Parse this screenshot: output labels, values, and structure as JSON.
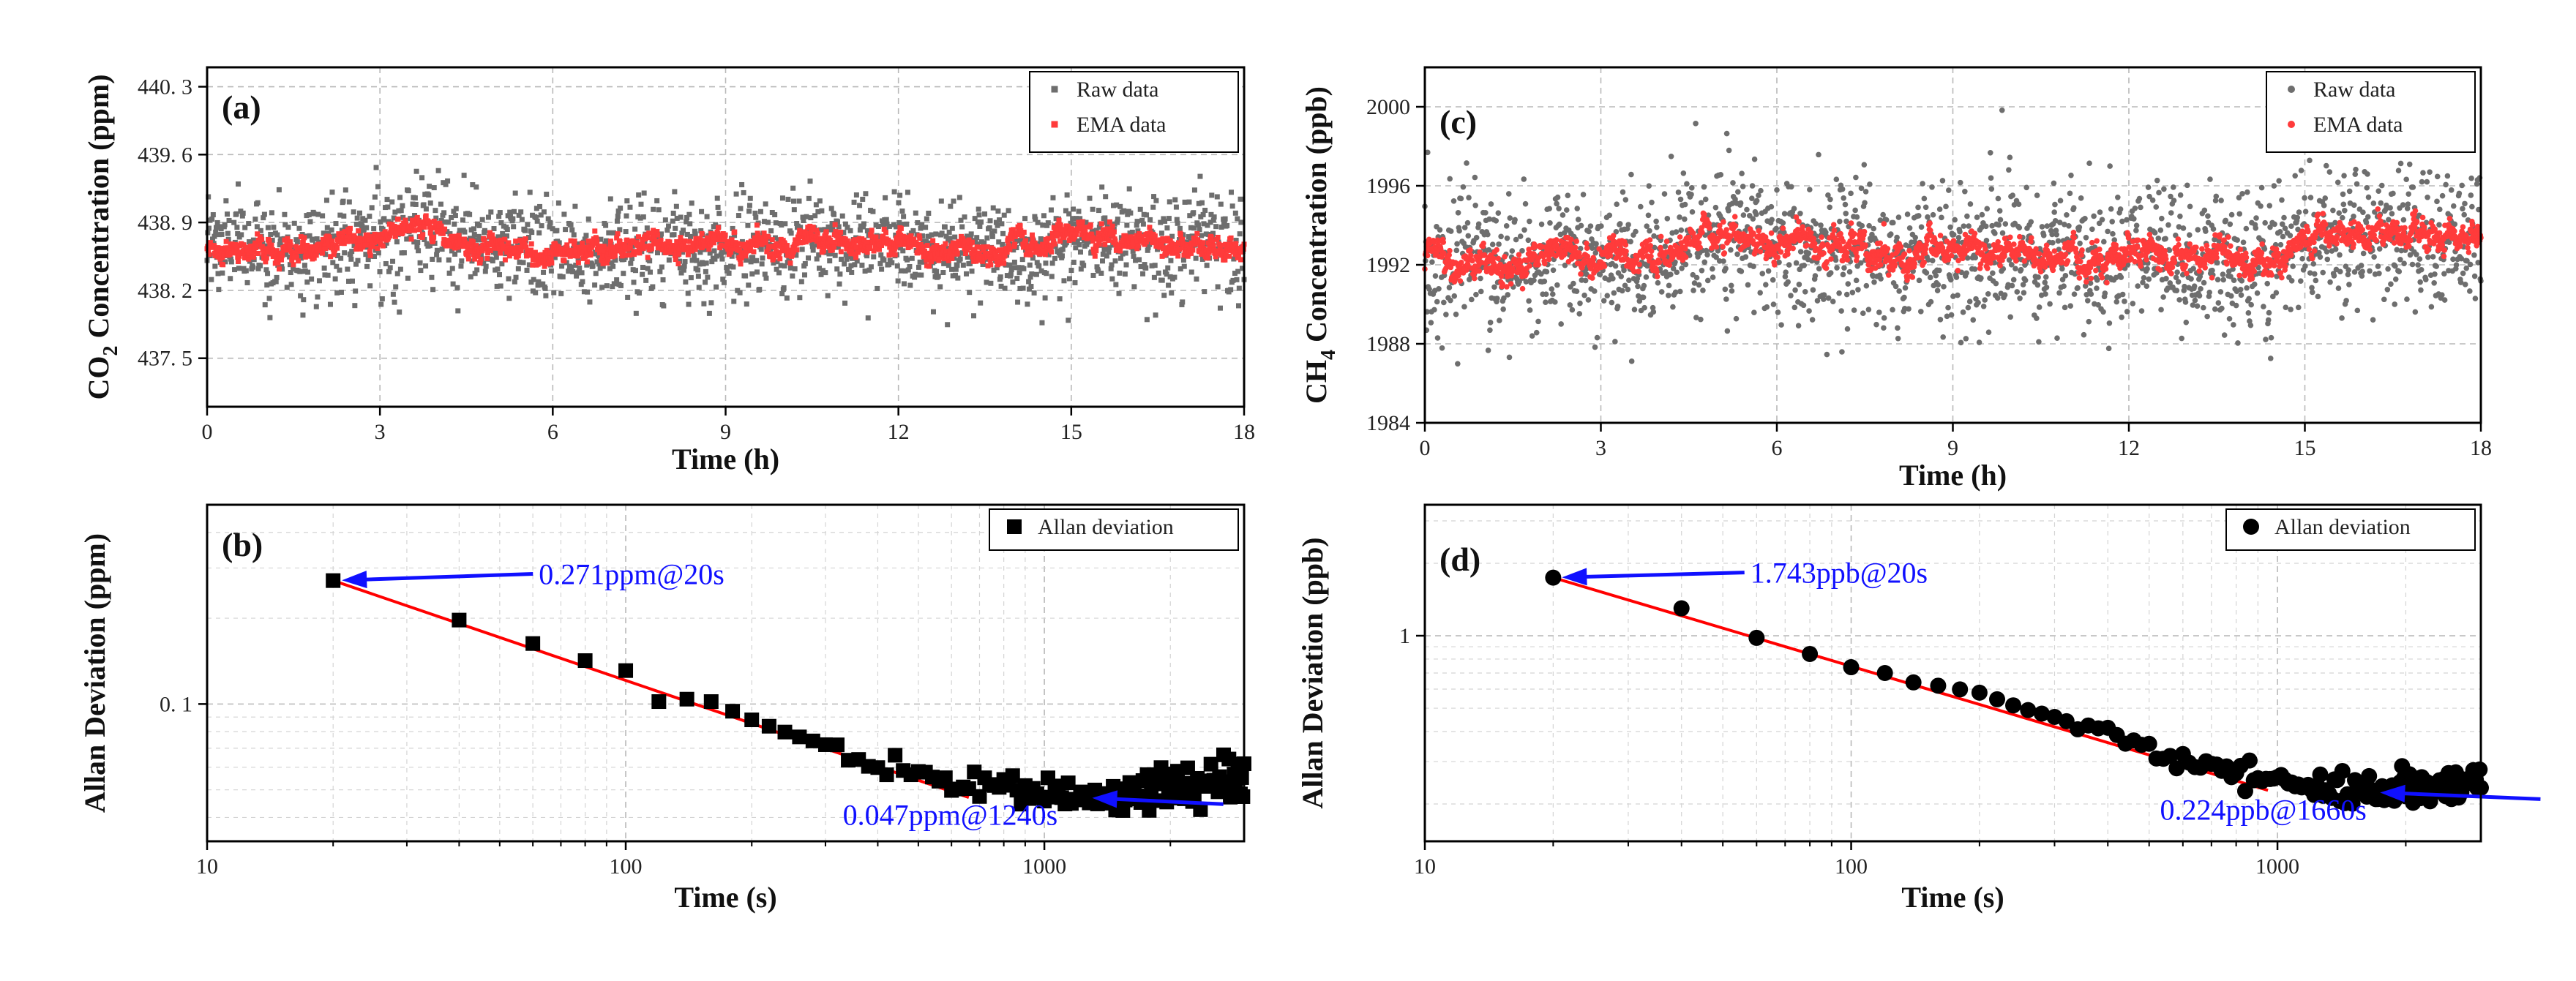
{
  "chart_data": [
    {
      "panel": "(a)",
      "type": "scatter",
      "xlabel": "Time (h)",
      "ylabel_main": "CO",
      "ylabel_sub": "2",
      "ylabel_tail": " Concentration (ppm)",
      "xlim": [
        0,
        18
      ],
      "ylim": [
        437.0,
        440.5
      ],
      "x_ticks": [
        0,
        3,
        6,
        9,
        12,
        15,
        18
      ],
      "x_tick_labels": [
        "0",
        "3",
        "6",
        "9",
        "12",
        "15",
        "18"
      ],
      "y_ticks": [
        437.5,
        438.2,
        438.9,
        439.6,
        440.3
      ],
      "y_tick_labels": [
        "437. 5",
        "438. 2",
        "438. 9",
        "439. 6",
        "440. 3"
      ],
      "grid": true,
      "legend": [
        {
          "label": "Raw data",
          "color": "#6e6e6e",
          "marker": "square"
        },
        {
          "label": "EMA data",
          "color": "#ff3b3b",
          "marker": "square"
        }
      ],
      "legend_position": "top-right",
      "series": [
        {
          "name": "Raw data",
          "color": "#6e6e6e",
          "mean": 438.68,
          "std": 0.26,
          "n": 1700
        },
        {
          "name": "EMA data",
          "color": "#ff3b3b",
          "std": 0.07,
          "n": 1900,
          "baseline": [
            [
              0,
              438.68
            ],
            [
              1.5,
              438.62
            ],
            [
              3.2,
              438.78
            ],
            [
              3.6,
              438.82
            ],
            [
              5,
              438.66
            ],
            [
              6.5,
              438.6
            ],
            [
              8,
              438.66
            ],
            [
              9.5,
              438.62
            ],
            [
              10.5,
              438.72
            ],
            [
              12,
              438.66
            ],
            [
              13.5,
              438.6
            ],
            [
              14.4,
              438.6
            ],
            [
              15.0,
              438.78
            ],
            [
              16.5,
              438.72
            ],
            [
              18,
              438.64
            ]
          ]
        }
      ]
    },
    {
      "panel": "(b)",
      "type": "scatter",
      "xscale": "log",
      "yscale": "log",
      "xlabel": "Time (s)",
      "ylabel": "Allan Deviation (ppm)",
      "xlim": [
        10,
        3000
      ],
      "ylim": [
        0.033,
        0.5
      ],
      "x_ticks": [
        10,
        100,
        1000
      ],
      "x_tick_labels": [
        "10",
        "100",
        "1000"
      ],
      "y_ticks": [
        0.1
      ],
      "y_tick_labels": [
        "0. 1"
      ],
      "grid": true,
      "legend": [
        {
          "label": "Allan deviation",
          "color": "#000000",
          "marker": "square"
        }
      ],
      "legend_position": "top-right",
      "series": [
        {
          "name": "Allan deviation",
          "color": "#000000",
          "marker": "square",
          "knots": [
            [
              20,
              0.271
            ],
            [
              40,
              0.197
            ],
            [
              60,
              0.163
            ],
            [
              80,
              0.142
            ],
            [
              100,
              0.131
            ],
            [
              120,
              0.102
            ],
            [
              140,
              0.104
            ],
            [
              160,
              0.102
            ],
            [
              200,
              0.088
            ],
            [
              250,
              0.078
            ],
            [
              300,
              0.072
            ],
            [
              400,
              0.063
            ],
            [
              500,
              0.057
            ],
            [
              700,
              0.052
            ],
            [
              900,
              0.05
            ],
            [
              1240,
              0.047
            ],
            [
              1600,
              0.048
            ],
            [
              2000,
              0.05
            ],
            [
              2500,
              0.052
            ],
            [
              3000,
              0.054
            ]
          ]
        },
        {
          "name": "Fit",
          "type": "line",
          "color": "#ff0000",
          "x": [
            20,
            660
          ],
          "y": [
            0.271,
            0.047
          ]
        }
      ],
      "annotations": [
        {
          "text": "0.271ppm@20s",
          "x": 20,
          "y": 0.271,
          "text_x": 62,
          "text_y": 0.286,
          "color": "#1010ff"
        },
        {
          "text": "0.047ppm@1240s",
          "x": 1240,
          "y": 0.047,
          "text_x": 330,
          "text_y": 0.041,
          "color": "#1010ff"
        }
      ]
    },
    {
      "panel": "(c)",
      "type": "scatter",
      "xlabel": "Time (h)",
      "ylabel_main": "CH",
      "ylabel_sub": "4",
      "ylabel_tail": " Concentration (ppb)",
      "xlim": [
        0,
        18
      ],
      "ylim": [
        1984,
        2002
      ],
      "x_ticks": [
        0,
        3,
        6,
        9,
        12,
        15,
        18
      ],
      "x_tick_labels": [
        "0",
        "3",
        "6",
        "9",
        "12",
        "15",
        "18"
      ],
      "y_ticks": [
        1984,
        1988,
        1992,
        1996,
        2000
      ],
      "y_tick_labels": [
        "1984",
        "1988",
        "1992",
        "1996",
        "2000"
      ],
      "grid": true,
      "legend": [
        {
          "label": "Raw data",
          "color": "#6e6e6e",
          "marker": "circle"
        },
        {
          "label": "EMA data",
          "color": "#ff3b3b",
          "marker": "circle"
        }
      ],
      "legend_position": "top-right",
      "series": [
        {
          "name": "Raw data",
          "color": "#6e6e6e",
          "mean": 1992.6,
          "std": 1.8,
          "n": 1900
        },
        {
          "name": "EMA data",
          "color": "#ff3b3b",
          "std": 0.45,
          "n": 2000,
          "baseline": [
            [
              0,
              1992.2
            ],
            [
              2,
              1992.1
            ],
            [
              4,
              1992.6
            ],
            [
              5,
              1993.3
            ],
            [
              6,
              1993.0
            ],
            [
              8,
              1992.4
            ],
            [
              9,
              1992.6
            ],
            [
              10.5,
              1992.4
            ],
            [
              12,
              1992.3
            ],
            [
              14,
              1992.3
            ],
            [
              15,
              1993.1
            ],
            [
              16.5,
              1993.4
            ],
            [
              18,
              1993.4
            ]
          ]
        }
      ]
    },
    {
      "panel": "(d)",
      "type": "scatter",
      "xscale": "log",
      "yscale": "log",
      "xlabel": "Time (s)",
      "ylabel": "Allan Deviation (ppb)",
      "xlim": [
        10,
        3000
      ],
      "ylim": [
        0.14,
        3.5
      ],
      "x_ticks": [
        10,
        100,
        1000
      ],
      "x_tick_labels": [
        "10",
        "100",
        "1000"
      ],
      "y_ticks": [
        1
      ],
      "y_tick_labels": [
        "1"
      ],
      "grid": true,
      "legend": [
        {
          "label": "Allan deviation",
          "color": "#000000",
          "marker": "circle"
        }
      ],
      "legend_position": "top-right",
      "series": [
        {
          "name": "Allan deviation",
          "color": "#000000",
          "marker": "circle",
          "knots": [
            [
              20,
              1.743
            ],
            [
              40,
              1.3
            ],
            [
              60,
              0.98
            ],
            [
              80,
              0.84
            ],
            [
              100,
              0.74
            ],
            [
              120,
              0.7
            ],
            [
              140,
              0.64
            ],
            [
              160,
              0.62
            ],
            [
              200,
              0.58
            ],
            [
              250,
              0.5
            ],
            [
              300,
              0.46
            ],
            [
              400,
              0.4
            ],
            [
              500,
              0.34
            ],
            [
              600,
              0.3
            ],
            [
              800,
              0.27
            ],
            [
              1000,
              0.25
            ],
            [
              1300,
              0.235
            ],
            [
              1660,
              0.224
            ],
            [
              2000,
              0.23
            ],
            [
              2500,
              0.24
            ],
            [
              3000,
              0.245
            ]
          ]
        },
        {
          "name": "Fit",
          "type": "line",
          "color": "#ff0000",
          "x": [
            20,
            950
          ],
          "y": [
            1.743,
            0.228
          ]
        }
      ],
      "annotations": [
        {
          "text": "1.743ppb@20s",
          "x": 20,
          "y": 1.743,
          "text_x": 58,
          "text_y": 1.83,
          "color": "#1010ff"
        },
        {
          "text": "0.224ppb@1660s",
          "x": 1660,
          "y": 0.224,
          "text_x": 530,
          "text_y": 0.19,
          "color": "#1010ff"
        }
      ]
    }
  ]
}
